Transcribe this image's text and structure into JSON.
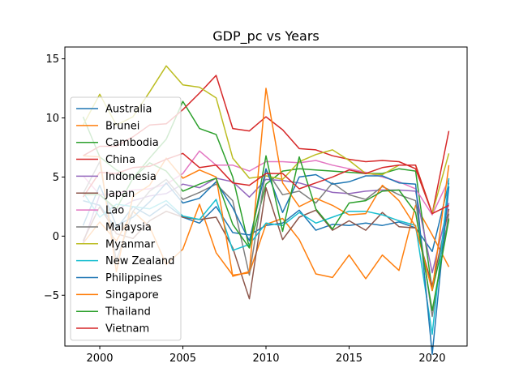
{
  "chart_data": {
    "type": "line",
    "title": "GDP_pc vs Years",
    "xlabel": "",
    "ylabel": "",
    "xlim": [
      1997.9,
      2022.1
    ],
    "ylim": [
      -9.3,
      16.0
    ],
    "x": [
      1999,
      2000,
      2001,
      2002,
      2003,
      2004,
      2005,
      2006,
      2007,
      2008,
      2009,
      2010,
      2011,
      2012,
      2013,
      2014,
      2015,
      2016,
      2017,
      2018,
      2019,
      2020,
      2021
    ],
    "x_ticks": [
      2000,
      2005,
      2010,
      2015,
      2020
    ],
    "y_ticks": [
      -5,
      0,
      5,
      10,
      15
    ],
    "grid": false,
    "legend_position": "left",
    "series": [
      {
        "name": "Australia",
        "color": "#1f77b4",
        "values": [
          3.0,
          2.6,
          0.6,
          2.5,
          1.7,
          2.7,
          1.6,
          1.1,
          2.5,
          0.3,
          0.1,
          0.9,
          1.1,
          2.2,
          0.5,
          1.0,
          0.9,
          1.1,
          0.9,
          1.2,
          0.7,
          -1.3,
          4.5
        ]
      },
      {
        "name": "Brunei",
        "color": "#ff7f0e",
        "values": [
          -0.6,
          1.2,
          -0.4,
          2.1,
          0.8,
          -2.4,
          -1.1,
          2.7,
          -1.4,
          -3.3,
          -3.1,
          1.0,
          1.5,
          -0.3,
          -3.2,
          -3.5,
          -1.6,
          -3.6,
          -1.6,
          -2.9,
          2.6,
          0.1,
          -2.6
        ]
      },
      {
        "name": "Cambodia",
        "color": "#2ca02c",
        "values": [
          10.1,
          6.7,
          5.6,
          4.9,
          6.6,
          8.2,
          11.4,
          9.1,
          8.6,
          5.0,
          -1.0,
          4.4,
          5.5,
          5.7,
          5.6,
          5.5,
          5.4,
          5.3,
          5.3,
          5.7,
          5.5,
          -4.6,
          1.5
        ]
      },
      {
        "name": "China",
        "color": "#d62728",
        "values": [
          6.8,
          7.6,
          7.6,
          8.4,
          9.4,
          9.5,
          10.7,
          12.1,
          13.6,
          9.1,
          8.9,
          10.1,
          9.0,
          7.4,
          7.3,
          6.8,
          6.5,
          6.3,
          6.4,
          6.3,
          5.7,
          1.9,
          8.9
        ]
      },
      {
        "name": "Indonesia",
        "color": "#9467bd",
        "values": [
          -0.6,
          3.5,
          2.2,
          3.0,
          3.4,
          3.6,
          4.4,
          4.1,
          4.9,
          4.6,
          3.3,
          4.8,
          4.7,
          4.5,
          4.1,
          3.7,
          3.6,
          3.8,
          3.9,
          3.9,
          3.8,
          -3.1,
          2.8
        ]
      },
      {
        "name": "Japan",
        "color": "#8c564b",
        "values": [
          -0.4,
          2.5,
          0.2,
          -0.2,
          1.3,
          2.1,
          1.6,
          1.4,
          1.6,
          -1.0,
          -5.3,
          4.1,
          -0.3,
          1.6,
          2.2,
          0.5,
          1.3,
          0.5,
          2.0,
          0.8,
          0.7,
          -4.2,
          2.3
        ]
      },
      {
        "name": "Lao",
        "color": "#e377c2",
        "values": [
          5.1,
          3.5,
          3.6,
          3.9,
          4.0,
          4.4,
          5.3,
          7.2,
          6.0,
          6.0,
          5.5,
          6.3,
          6.3,
          6.2,
          6.4,
          6.0,
          5.7,
          5.4,
          5.0,
          4.6,
          4.0,
          1.8,
          4.8
        ]
      },
      {
        "name": "Malaysia",
        "color": "#7f7f7f",
        "values": [
          3.6,
          6.3,
          -2.1,
          2.1,
          3.8,
          4.8,
          3.1,
          3.7,
          4.4,
          3.0,
          -3.3,
          5.6,
          3.5,
          3.8,
          2.8,
          4.5,
          3.5,
          3.1,
          4.2,
          3.5,
          3.0,
          -6.8,
          1.9
        ]
      },
      {
        "name": "Myanmar",
        "color": "#bcbd22",
        "values": [
          9.4,
          12.0,
          9.4,
          10.1,
          12.2,
          14.4,
          12.8,
          12.6,
          11.7,
          6.6,
          4.9,
          5.1,
          4.8,
          6.3,
          6.9,
          7.3,
          6.4,
          5.3,
          5.2,
          6.0,
          6.0,
          1.9,
          7.0
        ]
      },
      {
        "name": "New Zealand",
        "color": "#17becf",
        "values": [
          3.7,
          1.6,
          2.7,
          2.5,
          2.3,
          3.0,
          1.7,
          1.4,
          3.1,
          -1.2,
          -0.7,
          1.1,
          0.9,
          2.0,
          1.1,
          1.6,
          2.1,
          2.1,
          1.8,
          1.3,
          0.9,
          -8.3,
          4.9
        ]
      },
      {
        "name": "Philippines",
        "color": "#1f77b4",
        "values": [
          0.9,
          4.3,
          0.9,
          1.6,
          2.9,
          4.5,
          2.8,
          3.2,
          4.6,
          2.4,
          -0.4,
          5.7,
          2.0,
          5.0,
          5.2,
          4.4,
          4.6,
          5.1,
          5.1,
          4.5,
          4.4,
          -10.0,
          4.2
        ]
      },
      {
        "name": "Singapore",
        "color": "#ff7f0e",
        "values": [
          6.8,
          6.7,
          -3.0,
          3.4,
          4.3,
          6.6,
          4.9,
          5.6,
          5.0,
          -3.4,
          -3.0,
          12.5,
          4.5,
          2.5,
          3.2,
          2.6,
          1.8,
          1.9,
          4.3,
          3.0,
          0.8,
          -4.6,
          6.0
        ]
      },
      {
        "name": "Thailand",
        "color": "#2ca02c",
        "values": [
          3.5,
          3.5,
          2.3,
          4.9,
          6.2,
          5.5,
          3.8,
          4.4,
          4.9,
          1.0,
          -1.0,
          6.8,
          0.4,
          6.7,
          2.3,
          0.6,
          2.8,
          3.0,
          3.8,
          3.9,
          2.0,
          -6.3,
          1.4
        ]
      },
      {
        "name": "Vietnam",
        "color": "#d62728",
        "values": [
          3.3,
          5.4,
          5.3,
          5.8,
          5.9,
          6.5,
          7.0,
          5.8,
          6.0,
          4.5,
          4.3,
          5.3,
          5.3,
          4.0,
          4.5,
          5.0,
          5.6,
          5.3,
          5.8,
          6.0,
          6.0,
          1.9,
          2.6
        ]
      }
    ]
  }
}
